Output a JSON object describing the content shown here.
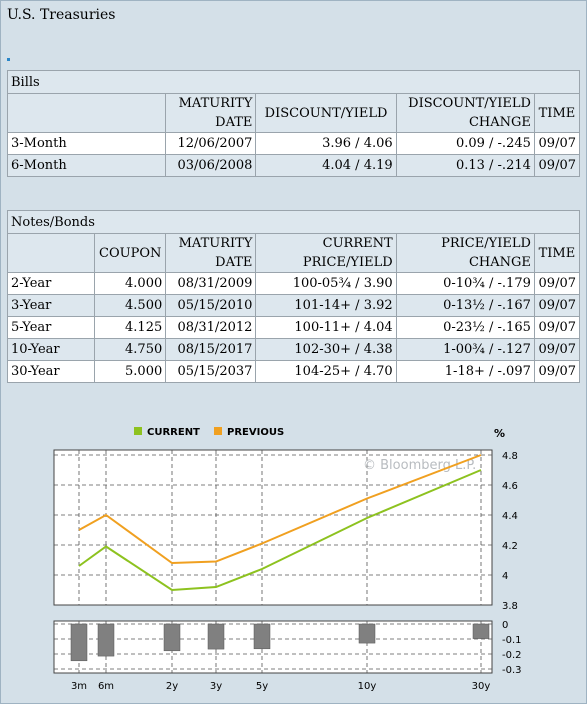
{
  "title": "U.S. Treasuries",
  "bills": {
    "section_label": "Bills",
    "headers": {
      "maturity": "MATURITY DATE",
      "discount_yield": "DISCOUNT/YIELD",
      "change": "DISCOUNT/YIELD CHANGE",
      "time": "TIME"
    },
    "rows": [
      {
        "term": "3-Month",
        "maturity": "12/06/2007",
        "discount_yield": "3.96 / 4.06",
        "change": "0.09 / -.245",
        "time": "09/07"
      },
      {
        "term": "6-Month",
        "maturity": "03/06/2008",
        "discount_yield": "4.04 / 4.19",
        "change": "0.13 / -.214",
        "time": "09/07"
      }
    ]
  },
  "notes": {
    "section_label": "Notes/Bonds",
    "headers": {
      "coupon": "COUPON",
      "maturity": "MATURITY DATE",
      "current": "CURRENT PRICE/YIELD",
      "change": "PRICE/YIELD CHANGE",
      "time": "TIME"
    },
    "rows": [
      {
        "term": "2-Year",
        "coupon": "4.000",
        "maturity": "08/31/2009",
        "current": "100-05¾ / 3.90",
        "change": "0-10¾ / -.179",
        "time": "09/07"
      },
      {
        "term": "3-Year",
        "coupon": "4.500",
        "maturity": "05/15/2010",
        "current": "101-14+ / 3.92",
        "change": "0-13½ / -.167",
        "time": "09/07"
      },
      {
        "term": "5-Year",
        "coupon": "4.125",
        "maturity": "08/31/2012",
        "current": "100-11+ / 4.04",
        "change": "0-23½ / -.165",
        "time": "09/07"
      },
      {
        "term": "10-Year",
        "coupon": "4.750",
        "maturity": "08/15/2017",
        "current": "102-30+ / 4.38",
        "change": "1-00¾ / -.127",
        "time": "09/07"
      },
      {
        "term": "30-Year",
        "coupon": "5.000",
        "maturity": "05/15/2037",
        "current": "104-25+ / 4.70",
        "change": "1-18+ / -.097",
        "time": "09/07"
      }
    ]
  },
  "chart_data": {
    "type": "line",
    "x": [
      "3m",
      "6m",
      "2y",
      "3y",
      "5y",
      "10y",
      "30y"
    ],
    "series": [
      {
        "name": "CURRENT",
        "color": "#8dc21f",
        "values": [
          4.06,
          4.19,
          3.9,
          3.92,
          4.04,
          4.38,
          4.7
        ]
      },
      {
        "name": "PREVIOUS",
        "color": "#f0a020",
        "values": [
          4.3,
          4.4,
          4.08,
          4.09,
          4.21,
          4.51,
          4.8
        ]
      }
    ],
    "ylabel": "%",
    "ylim": [
      3.8,
      4.8
    ],
    "yticks": [
      "4.8",
      "4.6",
      "4.4",
      "4.2",
      "4",
      "3.8"
    ],
    "grid": true,
    "legend": "top-left",
    "watermark": "© Bloomberg L.P.",
    "change_chart": {
      "type": "bar",
      "values": [
        -0.245,
        -0.214,
        -0.179,
        -0.167,
        -0.165,
        -0.127,
        -0.097
      ],
      "ylim": [
        -0.3,
        0
      ],
      "yticks": [
        "0",
        "-0.1",
        "-0.2",
        "-0.3"
      ]
    }
  }
}
